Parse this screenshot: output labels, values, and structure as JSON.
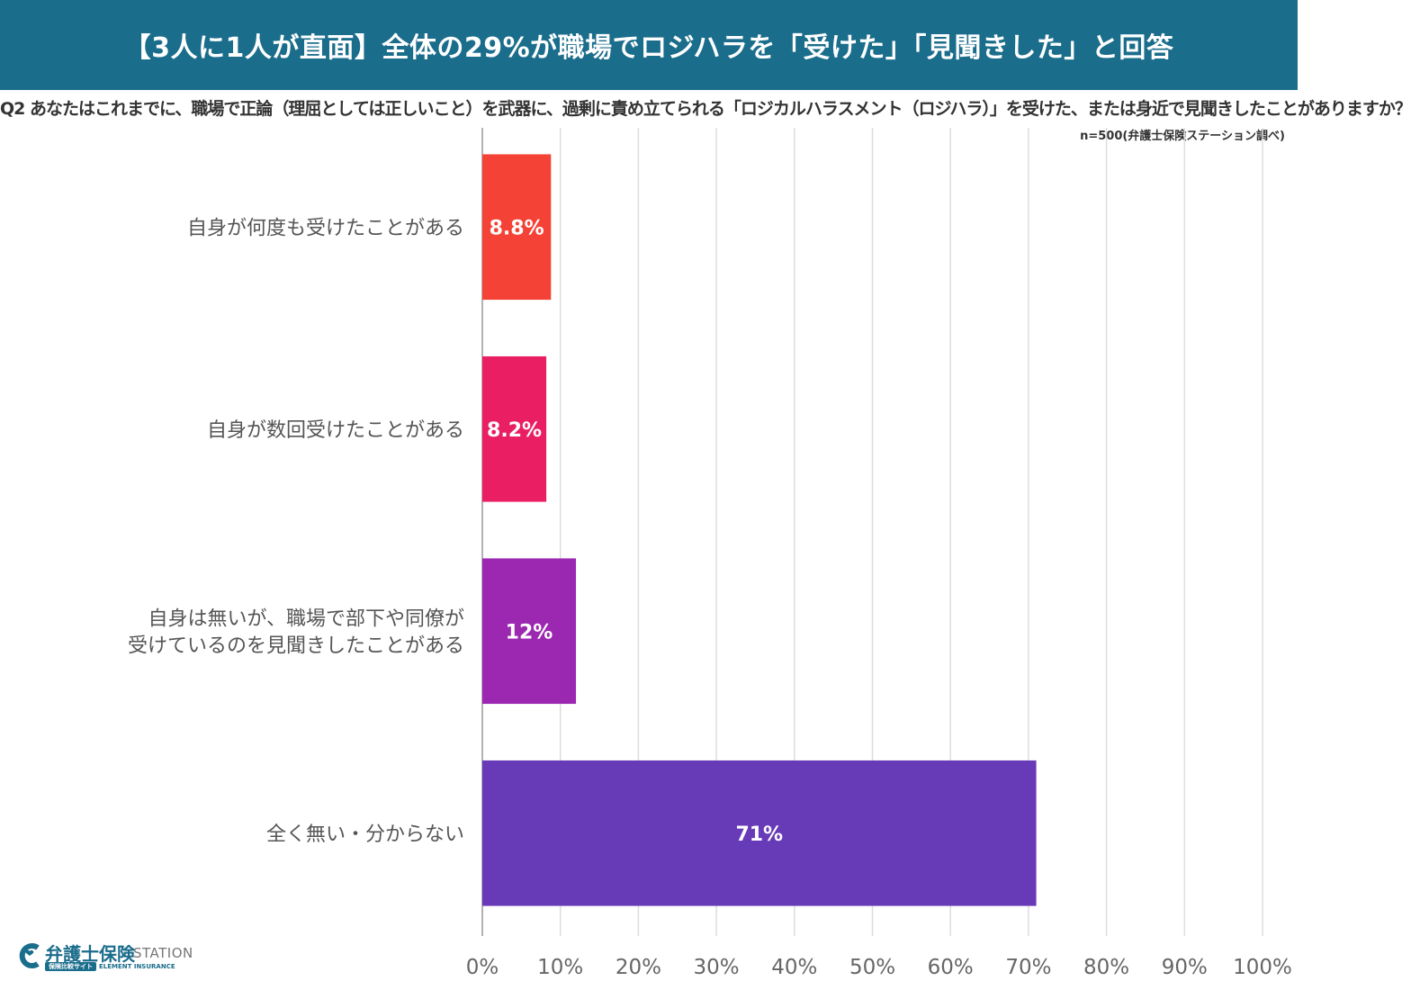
{
  "header": {
    "title": "【3人に1人が直面】全体の29%が職場でロジハラを「受けた」「見聞きした」と回答"
  },
  "question": "Q2 あなたはこれまでに、職場で正論（理屈としては正しいこと）を武器に、過剰に責め立てられる「ロジカルハラスメント（ロジハラ）」を受けた、または身近で見聞きしたことがありますか？",
  "source_note": "n=500(弁護士保険ステーション調べ)",
  "logo": {
    "brand_jp": "弁護士保険",
    "brand_en": "STATION",
    "tag_jp": "保険比較サイト",
    "tag_en": "ELEMENT INSURANCE"
  },
  "chart_data": {
    "type": "bar",
    "orientation": "horizontal",
    "categories": [
      [
        "自身が何度も受けたことがある"
      ],
      [
        "自身が数回受けたことがある"
      ],
      [
        "自身は無いが、職場で部下や同僚が",
        "受けているのを見聞きしたことがある"
      ],
      [
        "全く無い・分からない"
      ]
    ],
    "values": [
      8.8,
      8.2,
      12,
      71
    ],
    "value_labels": [
      "8.8%",
      "8.2%",
      "12%",
      "71%"
    ],
    "colors": [
      "#f44336",
      "#e91e63",
      "#9c27b0",
      "#673ab7"
    ],
    "xlim": [
      0,
      100
    ],
    "xticks": [
      "0%",
      "10%",
      "20%",
      "30%",
      "40%",
      "50%",
      "60%",
      "70%",
      "80%",
      "90%",
      "100%"
    ],
    "grid": true
  }
}
